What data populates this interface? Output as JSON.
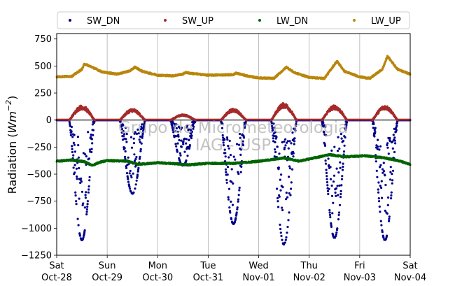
{
  "chart_data": {
    "type": "scatter",
    "ylabel": "Radiation (Wm^-2)",
    "ylabel_parts": {
      "main": "Radiation (",
      "var": "Wm",
      "exp": "−2",
      "close": ")"
    },
    "ylim": [
      -1250,
      800
    ],
    "yticks": [
      750,
      500,
      250,
      0,
      -250,
      -500,
      -750,
      -1000,
      -1250
    ],
    "ytick_labels": [
      "750",
      "500",
      "250",
      "0",
      "−250",
      "−500",
      "−750",
      "−1000",
      "−1250"
    ],
    "xlim_days": [
      0,
      7
    ],
    "xticks": [
      {
        "day": 0,
        "weekday": "Sat",
        "date": "Oct-28"
      },
      {
        "day": 1,
        "weekday": "Sun",
        "date": "Oct-29"
      },
      {
        "day": 2,
        "weekday": "Mon",
        "date": "Oct-30"
      },
      {
        "day": 3,
        "weekday": "Tue",
        "date": "Oct-31"
      },
      {
        "day": 4,
        "weekday": "Wed",
        "date": "Nov-01"
      },
      {
        "day": 5,
        "weekday": "Thu",
        "date": "Nov-02"
      },
      {
        "day": 6,
        "weekday": "Fri",
        "date": "Nov-03"
      },
      {
        "day": 7,
        "weekday": "Sat",
        "date": "Nov-04"
      }
    ],
    "grid": "vertical",
    "zero_line": true,
    "legend_position": "top",
    "watermark": [
      "Grupo de Micrometeorologia",
      "IAG - USP"
    ],
    "series": [
      {
        "name": "SW_DN",
        "color": "#00008b",
        "day_peaks": [
          -1110,
          -680,
          -420,
          -960,
          -1150,
          -1090,
          -1110
        ],
        "day_width_hours": 12.2
      },
      {
        "name": "SW_UP",
        "color": "#a52a2a",
        "day_peaks": [
          130,
          100,
          50,
          100,
          150,
          130,
          130
        ],
        "day_width_hours": 12.2
      },
      {
        "name": "LW_DN",
        "color": "#006400",
        "points": [
          {
            "day": 0.0,
            "value": -380
          },
          {
            "day": 0.3,
            "value": -370
          },
          {
            "day": 0.55,
            "value": -385
          },
          {
            "day": 0.7,
            "value": -420
          },
          {
            "day": 0.85,
            "value": -390
          },
          {
            "day": 1.0,
            "value": -375
          },
          {
            "day": 1.4,
            "value": -380
          },
          {
            "day": 1.6,
            "value": -410
          },
          {
            "day": 2.0,
            "value": -395
          },
          {
            "day": 2.4,
            "value": -405
          },
          {
            "day": 2.6,
            "value": -415
          },
          {
            "day": 3.0,
            "value": -400
          },
          {
            "day": 3.5,
            "value": -400
          },
          {
            "day": 3.8,
            "value": -390
          },
          {
            "day": 4.2,
            "value": -370
          },
          {
            "day": 4.5,
            "value": -350
          },
          {
            "day": 4.8,
            "value": -380
          },
          {
            "day": 5.1,
            "value": -350
          },
          {
            "day": 5.4,
            "value": -320
          },
          {
            "day": 5.7,
            "value": -340
          },
          {
            "day": 6.1,
            "value": -330
          },
          {
            "day": 6.5,
            "value": -350
          },
          {
            "day": 6.8,
            "value": -380
          },
          {
            "day": 7.0,
            "value": -410
          }
        ]
      },
      {
        "name": "LW_UP",
        "color": "#b8860b",
        "points": [
          {
            "day": 0.0,
            "value": 400
          },
          {
            "day": 0.3,
            "value": 405
          },
          {
            "day": 0.5,
            "value": 470
          },
          {
            "day": 0.55,
            "value": 520
          },
          {
            "day": 0.7,
            "value": 490
          },
          {
            "day": 0.9,
            "value": 445
          },
          {
            "day": 1.2,
            "value": 425
          },
          {
            "day": 1.45,
            "value": 455
          },
          {
            "day": 1.55,
            "value": 490
          },
          {
            "day": 1.7,
            "value": 450
          },
          {
            "day": 2.0,
            "value": 415
          },
          {
            "day": 2.3,
            "value": 410
          },
          {
            "day": 2.5,
            "value": 425
          },
          {
            "day": 2.55,
            "value": 440
          },
          {
            "day": 2.7,
            "value": 430
          },
          {
            "day": 3.0,
            "value": 415
          },
          {
            "day": 3.5,
            "value": 420
          },
          {
            "day": 3.55,
            "value": 435
          },
          {
            "day": 3.8,
            "value": 405
          },
          {
            "day": 4.0,
            "value": 390
          },
          {
            "day": 4.3,
            "value": 385
          },
          {
            "day": 4.55,
            "value": 490
          },
          {
            "day": 4.7,
            "value": 440
          },
          {
            "day": 5.0,
            "value": 395
          },
          {
            "day": 5.3,
            "value": 385
          },
          {
            "day": 5.55,
            "value": 545
          },
          {
            "day": 5.7,
            "value": 450
          },
          {
            "day": 6.0,
            "value": 400
          },
          {
            "day": 6.2,
            "value": 385
          },
          {
            "day": 6.45,
            "value": 470
          },
          {
            "day": 6.55,
            "value": 590
          },
          {
            "day": 6.75,
            "value": 470
          },
          {
            "day": 7.0,
            "value": 425
          }
        ]
      }
    ]
  }
}
